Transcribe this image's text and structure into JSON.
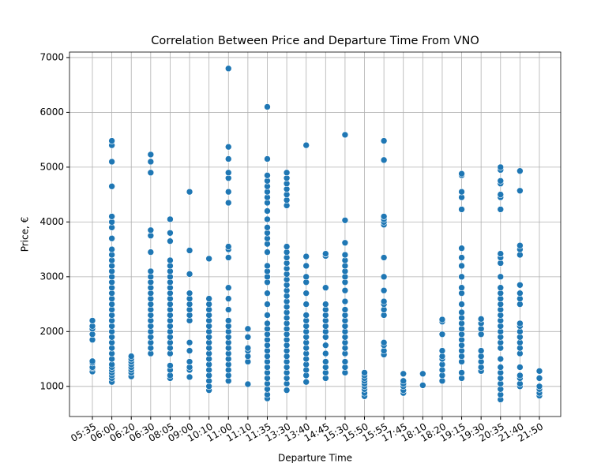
{
  "chart_data": {
    "type": "scatter",
    "title": "Correlation Between Price and Departure Time From VNO",
    "x_label": "Departure Time",
    "y_label": "Price, €",
    "color": "#1f77b4",
    "grid": true,
    "ylim": [
      450,
      7100
    ],
    "yticks": [
      1000,
      2000,
      3000,
      4000,
      5000,
      6000,
      7000
    ],
    "categories": [
      "05:35",
      "06:00",
      "06:20",
      "06:30",
      "08:05",
      "09:00",
      "10:10",
      "11:00",
      "11:10",
      "11:35",
      "13:30",
      "13:40",
      "14:45",
      "15:30",
      "15:50",
      "15:55",
      "17:45",
      "18:10",
      "18:20",
      "19:15",
      "19:30",
      "20:35",
      "21:40",
      "21:50"
    ],
    "values": [
      [
        1270,
        1330,
        1350,
        1430,
        1460,
        1850,
        1950,
        2050,
        2100,
        2200
      ],
      [
        1080,
        1150,
        1200,
        1250,
        1300,
        1350,
        1400,
        1500,
        1600,
        1700,
        1800,
        1900,
        2000,
        2100,
        2200,
        2300,
        2400,
        2500,
        2600,
        2700,
        2800,
        2900,
        3000,
        3100,
        3200,
        3300,
        3400,
        3500,
        3700,
        3900,
        4000,
        4100,
        4650,
        5100,
        5400,
        5480
      ],
      [
        1180,
        1250,
        1300,
        1350,
        1400,
        1450,
        1500,
        1550
      ],
      [
        1600,
        1700,
        1800,
        1900,
        2000,
        2100,
        2200,
        2300,
        2400,
        2500,
        2600,
        2700,
        2800,
        2900,
        3000,
        3100,
        3450,
        3750,
        3850,
        4900,
        5100,
        5230
      ],
      [
        1150,
        1200,
        1300,
        1380,
        1600,
        1700,
        1800,
        1900,
        2000,
        2100,
        2200,
        2300,
        2400,
        2500,
        2600,
        2700,
        2800,
        2900,
        3000,
        3100,
        3200,
        3300,
        3650,
        3800,
        4050
      ],
      [
        1170,
        1300,
        1350,
        1450,
        1650,
        1800,
        2200,
        2300,
        2400,
        2500,
        2600,
        2700,
        3050,
        3480,
        4550
      ],
      [
        930,
        1000,
        1100,
        1200,
        1300,
        1400,
        1500,
        1600,
        1700,
        1800,
        1900,
        2000,
        2100,
        2200,
        2300,
        2400,
        2500,
        2600,
        3330
      ],
      [
        1100,
        1200,
        1300,
        1400,
        1500,
        1600,
        1700,
        1800,
        1900,
        2000,
        2100,
        2200,
        2400,
        2600,
        2800,
        3350,
        3500,
        3550,
        4350,
        4550,
        4800,
        4900,
        5150,
        5370,
        6800
      ],
      [
        1040,
        1450,
        1550,
        1650,
        1700,
        1900,
        2050
      ],
      [
        780,
        850,
        950,
        1050,
        1150,
        1250,
        1350,
        1450,
        1550,
        1650,
        1750,
        1850,
        1950,
        2050,
        2150,
        2300,
        2500,
        2700,
        2900,
        3000,
        3100,
        3200,
        3450,
        3600,
        3700,
        3800,
        3900,
        4050,
        4200,
        4350,
        4450,
        4550,
        4650,
        4750,
        4850,
        5150,
        6100
      ],
      [
        930,
        1050,
        1150,
        1250,
        1350,
        1450,
        1550,
        1650,
        1750,
        1850,
        1950,
        2050,
        2150,
        2250,
        2350,
        2450,
        2550,
        2650,
        2750,
        2850,
        2950,
        3050,
        3150,
        3250,
        3350,
        3450,
        3550,
        4300,
        4400,
        4500,
        4600,
        4700,
        4800,
        4900
      ],
      [
        1080,
        1200,
        1300,
        1400,
        1500,
        1600,
        1700,
        1800,
        1900,
        2000,
        2100,
        2200,
        2300,
        2500,
        2700,
        2900,
        3000,
        3200,
        3370,
        5400
      ],
      [
        1150,
        1250,
        1350,
        1450,
        1600,
        1750,
        1900,
        2000,
        2100,
        2200,
        2300,
        2400,
        2500,
        2800,
        3380,
        3420
      ],
      [
        1250,
        1350,
        1450,
        1600,
        1700,
        1800,
        1900,
        2000,
        2100,
        2200,
        2300,
        2400,
        2550,
        2750,
        2900,
        3000,
        3100,
        3200,
        3300,
        3400,
        3620,
        4030,
        5590
      ],
      [
        820,
        880,
        950,
        1000,
        1050,
        1100,
        1150,
        1200,
        1250
      ],
      [
        1580,
        1650,
        1750,
        1800,
        2300,
        2400,
        2500,
        2550,
        2750,
        3000,
        3350,
        3950,
        4000,
        4050,
        4100,
        5130,
        5480
      ],
      [
        880,
        930,
        1000,
        1050,
        1100,
        1230
      ],
      [
        1020,
        1230
      ],
      [
        1100,
        1200,
        1300,
        1400,
        1500,
        1550,
        1650,
        1950,
        2180,
        2220
      ],
      [
        1150,
        1250,
        1450,
        1550,
        1650,
        1750,
        1850,
        1950,
        2050,
        2150,
        2250,
        2350,
        2500,
        2700,
        2800,
        3000,
        3200,
        3350,
        3520,
        4230,
        4450,
        4550,
        4850,
        4880
      ],
      [
        1280,
        1350,
        1450,
        1550,
        1650,
        1950,
        2050,
        2150,
        2230
      ],
      [
        760,
        850,
        950,
        1050,
        1150,
        1250,
        1350,
        1500,
        1700,
        1800,
        1900,
        2000,
        2100,
        2200,
        2300,
        2400,
        2500,
        2600,
        2700,
        2800,
        3000,
        3250,
        3350,
        3420,
        4230,
        4450,
        4500,
        4700,
        4750,
        4950,
        5000
      ],
      [
        1000,
        1050,
        1150,
        1200,
        1350,
        1600,
        1700,
        1800,
        1900,
        2000,
        2100,
        2150,
        2500,
        2600,
        2700,
        2850,
        3400,
        3500,
        3570,
        4570,
        4930
      ],
      [
        830,
        880,
        950,
        1000,
        1150,
        1280
      ]
    ]
  }
}
